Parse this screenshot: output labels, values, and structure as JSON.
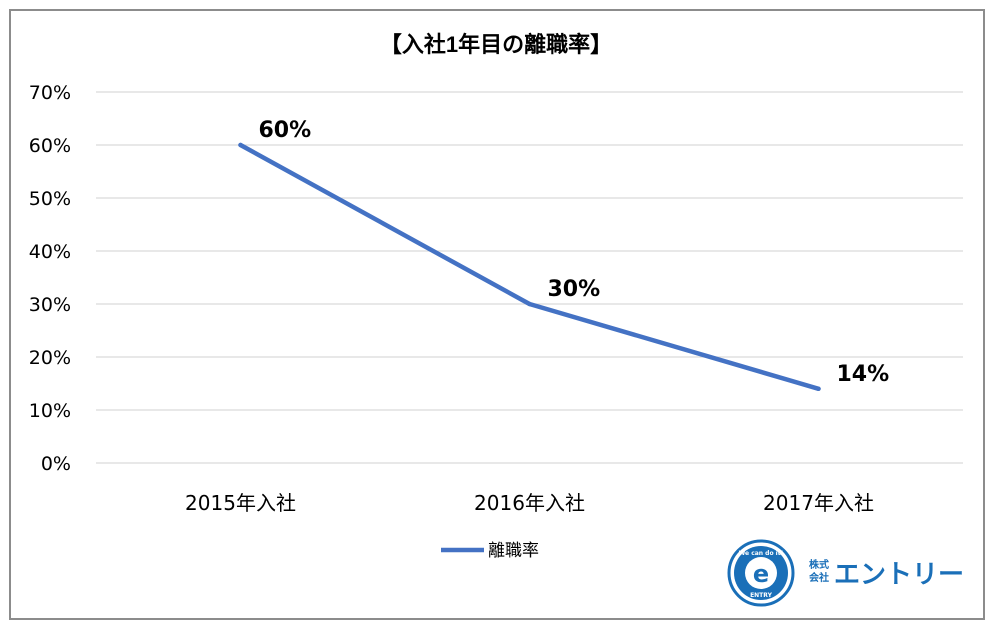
{
  "chart_data": {
    "type": "line",
    "title": "【入社1年目の離職率】",
    "categories": [
      "2015年入社",
      "2016年入社",
      "2017年入社"
    ],
    "series": [
      {
        "name": "離職率",
        "values": [
          60,
          30,
          14
        ],
        "data_labels": [
          "60%",
          "30%",
          "14%"
        ],
        "color": "#4472c4"
      }
    ],
    "y_ticks": [
      "0%",
      "10%",
      "20%",
      "30%",
      "40%",
      "50%",
      "60%",
      "70%"
    ],
    "ylim": [
      0,
      70
    ],
    "grid": true,
    "legend": "bottom"
  },
  "logo": {
    "corp": "株式\n会社",
    "brand": "エントリー",
    "badge_text_top": "We can do it!",
    "badge_text_bottom": "ENTRY",
    "badge_letter": "e"
  }
}
